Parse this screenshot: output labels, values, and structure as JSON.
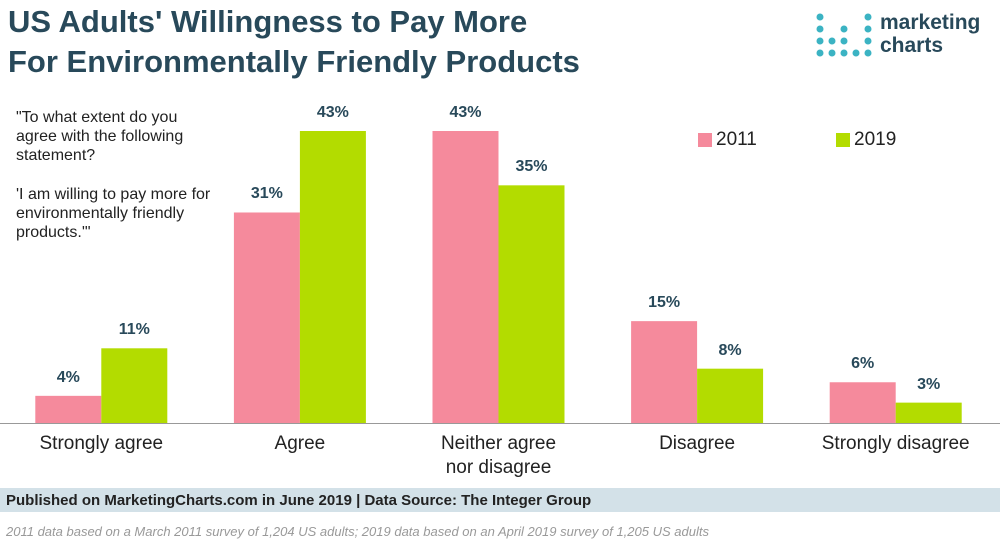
{
  "chart_data": {
    "type": "bar",
    "title": [
      "US Adults' Willingness to Pay More",
      "For Environmentally Friendly Products"
    ],
    "annotation": [
      "\"To what extent do you agree with the following statement?",
      "'I am willing to pay more for environmentally friendly products.'\""
    ],
    "categories": [
      "Strongly agree",
      "Agree",
      "Neither agree nor disagree",
      "Disagree",
      "Strongly disagree"
    ],
    "series": [
      {
        "name": "2011",
        "color": "#f58a9c",
        "values": [
          4,
          31,
          43,
          15,
          6
        ],
        "value_labels": [
          "4%",
          "31%",
          "43%",
          "15%",
          "6%"
        ]
      },
      {
        "name": "2019",
        "color": "#b3dc00",
        "values": [
          11,
          43,
          35,
          8,
          3
        ],
        "value_labels": [
          "11%",
          "43%",
          "35%",
          "8%",
          "3%"
        ]
      }
    ]
  },
  "logo": [
    "marketing",
    "charts"
  ],
  "source": "Published on MarketingCharts.com in June 2019 | Data Source: The Integer Group",
  "note": "2011 data based on a March 2011 survey of 1,204 US adults; 2019 data based on an April 2019 survey of 1,205 US adults"
}
